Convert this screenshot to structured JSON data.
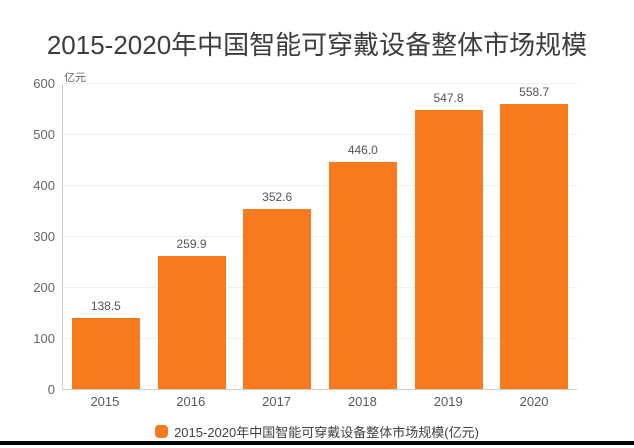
{
  "chart_data": {
    "type": "bar",
    "title": "2015-2020年中国智能可穿戴设备整体市场规模",
    "unit_label": "亿元",
    "categories": [
      "2015",
      "2016",
      "2017",
      "2018",
      "2019",
      "2020"
    ],
    "values": [
      138.5,
      259.9,
      352.6,
      446.0,
      547.8,
      558.7
    ],
    "value_labels": [
      "138.5",
      "259.9",
      "352.6",
      "446.0",
      "547.8",
      "558.7"
    ],
    "xlabel": "",
    "ylabel": "亿元",
    "ylim": [
      0,
      600
    ],
    "yticks": [
      0,
      100,
      200,
      300,
      400,
      500,
      600
    ],
    "grid": true,
    "legend": {
      "position": "bottom",
      "label": "2015-2020年中国智能可穿戴设备整体市场规模(亿元)"
    },
    "bar_color": "#f87a1e",
    "axis_color": "#cccccc",
    "gridline_color": "#efefef",
    "background_color": "#ffffff"
  }
}
